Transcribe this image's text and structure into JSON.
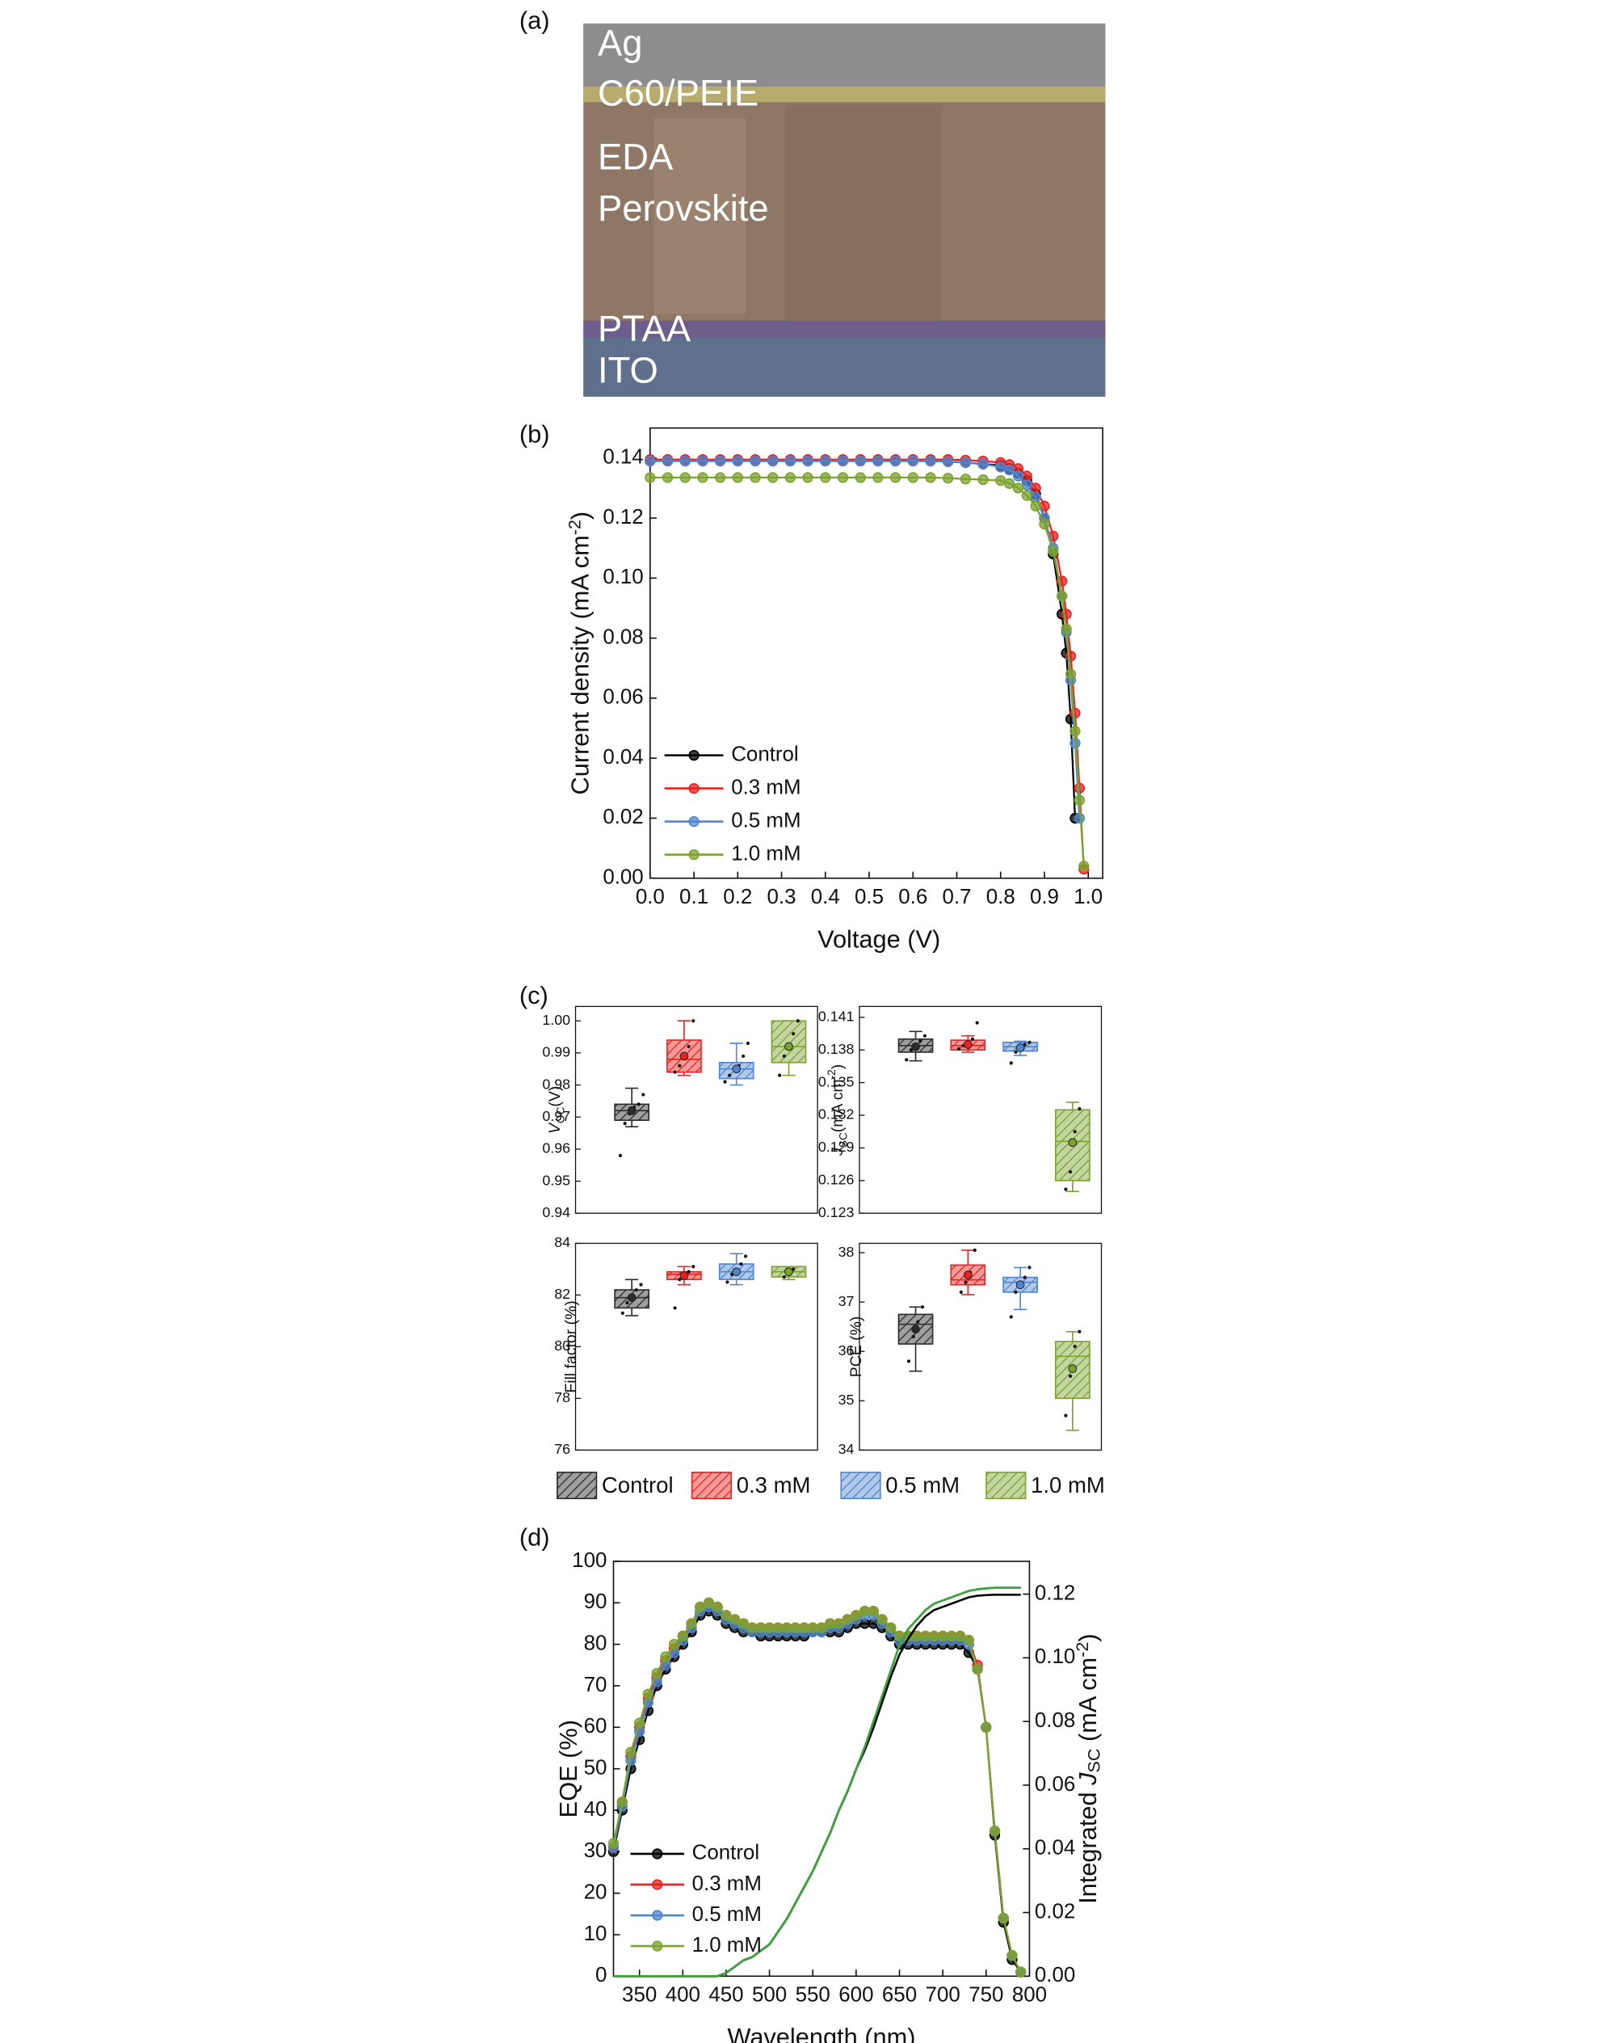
{
  "image_panel": {
    "label": "(a)",
    "layers": [
      "Ag",
      "C60/PEIE",
      "EDA",
      "Perovskite",
      "PTAA",
      "ITO"
    ]
  },
  "box_panel": {
    "label": "(c)",
    "series": [
      {
        "name": "Control",
        "color": "#2b2b2b"
      },
      {
        "name": "0.3 mM",
        "color": "#e8221f"
      },
      {
        "name": "0.5 mM",
        "color": "#4f86cf"
      },
      {
        "name": "1.0 mM",
        "color": "#7ba32e"
      }
    ]
  },
  "chart_data": [
    {
      "type": "line",
      "panel_label": "(b)",
      "xlabel": "Voltage (V)",
      "ylabel": [
        "Current density (mA cm",
        "-2",
        ")"
      ],
      "xlim": [
        0,
        1.033
      ],
      "ylim": [
        0,
        0.15
      ],
      "xticks": [
        {
          "value": 0,
          "label": "0.0"
        },
        0.1,
        0.2,
        0.3,
        0.4,
        0.5,
        0.6,
        0.7,
        0.8,
        0.9,
        {
          "value": 1,
          "label": "1.0"
        }
      ],
      "yticks": [
        {
          "value": 0,
          "label": "0.00"
        },
        0.02,
        0.04,
        0.06,
        0.08,
        {
          "value": 0.1,
          "label": "0.10"
        },
        0.12,
        0.14
      ],
      "legend": "lower left",
      "x": [
        0,
        0.04,
        0.08,
        0.12,
        0.16,
        0.2,
        0.24,
        0.28,
        0.32,
        0.36,
        0.4,
        0.44,
        0.48,
        0.52,
        0.56,
        0.6,
        0.64,
        0.68,
        0.72,
        0.76,
        0.8,
        0.82,
        0.84,
        0.86,
        0.88,
        0.9,
        0.92,
        0.94,
        0.95,
        0.96,
        0.97,
        0.98,
        0.99
      ],
      "series": [
        {
          "name": "Control",
          "color": "#000000",
          "values": [
            0.139,
            0.139,
            0.139,
            0.139,
            0.139,
            0.139,
            0.139,
            0.139,
            0.139,
            0.139,
            0.139,
            0.139,
            0.139,
            0.139,
            0.139,
            0.139,
            0.139,
            0.1388,
            0.1385,
            0.138,
            0.1375,
            0.1365,
            0.135,
            0.1325,
            0.128,
            0.12,
            0.108,
            0.088,
            0.075,
            0.053,
            0.02,
            null,
            null
          ]
        },
        {
          "name": "0.3 mM",
          "color": "#e8221f",
          "values": [
            0.1395,
            0.1395,
            0.1395,
            0.1395,
            0.1395,
            0.1395,
            0.1395,
            0.1395,
            0.1395,
            0.1395,
            0.1395,
            0.1395,
            0.1395,
            0.1395,
            0.1395,
            0.1395,
            0.1395,
            0.1395,
            0.1393,
            0.139,
            0.1385,
            0.1378,
            0.1365,
            0.134,
            0.13,
            0.124,
            0.114,
            0.099,
            0.088,
            0.074,
            0.055,
            0.03,
            0.003
          ]
        },
        {
          "name": "0.5 mM",
          "color": "#4f86cf",
          "values": [
            0.139,
            0.139,
            0.139,
            0.139,
            0.139,
            0.139,
            0.139,
            0.139,
            0.139,
            0.139,
            0.139,
            0.139,
            0.139,
            0.139,
            0.139,
            0.139,
            0.139,
            0.1388,
            0.1385,
            0.138,
            0.137,
            0.136,
            0.134,
            0.131,
            0.127,
            0.12,
            0.11,
            0.094,
            0.082,
            0.066,
            0.045,
            0.02,
            null
          ]
        },
        {
          "name": "1.0 mM",
          "color": "#7ba32e",
          "values": [
            0.1335,
            0.1335,
            0.1335,
            0.1335,
            0.1335,
            0.1335,
            0.1335,
            0.1335,
            0.1335,
            0.1335,
            0.1335,
            0.1335,
            0.1335,
            0.1335,
            0.1335,
            0.1335,
            0.1335,
            0.1333,
            0.133,
            0.1328,
            0.1325,
            0.1315,
            0.13,
            0.1275,
            0.124,
            0.118,
            0.109,
            0.094,
            0.083,
            0.068,
            0.049,
            0.026,
            0.004
          ]
        }
      ]
    },
    {
      "type": "box",
      "ylabel": [
        "V",
        "OC",
        "(V)"
      ],
      "ylim": [
        0.94,
        1.0045
      ],
      "yticks": [
        0.94,
        0.95,
        0.96,
        0.97,
        0.98,
        0.99,
        {
          "value": 1,
          "label": "1.00"
        }
      ],
      "boxes": [
        {
          "min": 0.967,
          "q1": 0.969,
          "median": 0.972,
          "q3": 0.974,
          "max": 0.979,
          "mean": 0.972,
          "points": [
            0.958,
            0.968,
            0.971,
            0.973,
            0.974,
            0.977
          ]
        },
        {
          "min": 0.983,
          "q1": 0.984,
          "median": 0.988,
          "q3": 0.994,
          "max": 1.0,
          "mean": 0.989,
          "points": [
            0.984,
            0.986,
            0.989,
            0.992,
            1.0
          ]
        },
        {
          "min": 0.98,
          "q1": 0.982,
          "median": 0.985,
          "q3": 0.987,
          "max": 0.993,
          "mean": 0.985,
          "points": [
            0.981,
            0.983,
            0.985,
            0.986,
            0.989,
            0.993
          ]
        },
        {
          "min": 0.983,
          "q1": 0.987,
          "median": 0.992,
          "q3": 1.0,
          "max": 1.0,
          "mean": 0.992,
          "points": [
            0.983,
            0.989,
            0.992,
            0.996,
            1.0
          ]
        }
      ]
    },
    {
      "type": "box",
      "ylabel": [
        "J",
        "SC",
        "(mA cm",
        "-2",
        ")"
      ],
      "ylim": [
        0.123,
        0.142
      ],
      "yticks": [
        0.123,
        0.126,
        0.129,
        0.132,
        0.135,
        0.138,
        0.141
      ],
      "boxes": [
        {
          "min": 0.137,
          "q1": 0.1378,
          "median": 0.1384,
          "q3": 0.139,
          "max": 0.1397,
          "mean": 0.1383,
          "points": [
            0.1371,
            0.138,
            0.1384,
            0.1388,
            0.1393
          ]
        },
        {
          "min": 0.1378,
          "q1": 0.138,
          "median": 0.1384,
          "q3": 0.1389,
          "max": 0.1393,
          "mean": 0.1385,
          "points": [
            0.1381,
            0.1384,
            0.1387,
            0.139,
            0.1405
          ]
        },
        {
          "min": 0.1375,
          "q1": 0.1379,
          "median": 0.1383,
          "q3": 0.1387,
          "max": 0.1388,
          "mean": 0.1382,
          "points": [
            0.1368,
            0.1378,
            0.1382,
            0.1385,
            0.1387
          ]
        },
        {
          "min": 0.125,
          "q1": 0.126,
          "median": 0.1296,
          "q3": 0.1325,
          "max": 0.1332,
          "mean": 0.1295,
          "points": [
            0.1252,
            0.1268,
            0.1305,
            0.1326
          ]
        }
      ]
    },
    {
      "type": "box",
      "ylabel": "Fill factor (%)",
      "ylim": [
        76,
        84
      ],
      "yticks": [
        76,
        78,
        80,
        82,
        84
      ],
      "boxes": [
        {
          "min": 81.2,
          "q1": 81.5,
          "median": 81.9,
          "q3": 82.2,
          "max": 82.6,
          "mean": 81.9,
          "points": [
            81.3,
            81.7,
            82.0,
            82.2,
            82.4
          ]
        },
        {
          "min": 82.4,
          "q1": 82.6,
          "median": 82.8,
          "q3": 82.9,
          "max": 83.1,
          "mean": 82.75,
          "points": [
            81.5,
            82.6,
            82.8,
            82.9,
            83.1
          ]
        },
        {
          "min": 82.4,
          "q1": 82.6,
          "median": 82.9,
          "q3": 83.2,
          "max": 83.6,
          "mean": 82.9,
          "points": [
            82.5,
            82.8,
            83.0,
            83.2,
            83.5
          ]
        },
        {
          "min": 82.6,
          "q1": 82.7,
          "median": 82.9,
          "q3": 83.1,
          "max": 83.1,
          "mean": 82.9,
          "points": [
            82.7,
            82.9,
            83.0
          ]
        }
      ]
    },
    {
      "type": "box",
      "ylabel": "PCE (%)",
      "ylim": [
        34,
        38.19
      ],
      "yticks": [
        34,
        35,
        36,
        37,
        38
      ],
      "boxes": [
        {
          "min": 35.6,
          "q1": 36.15,
          "median": 36.55,
          "q3": 36.75,
          "max": 36.9,
          "mean": 36.45,
          "points": [
            35.8,
            36.3,
            36.6,
            36.9
          ]
        },
        {
          "min": 37.15,
          "q1": 37.35,
          "median": 37.45,
          "q3": 37.75,
          "max": 38.05,
          "mean": 37.55,
          "points": [
            37.2,
            37.4,
            37.6,
            38.05
          ]
        },
        {
          "min": 36.85,
          "q1": 37.2,
          "median": 37.4,
          "q3": 37.5,
          "max": 37.7,
          "mean": 37.35,
          "points": [
            36.7,
            37.2,
            37.4,
            37.5,
            37.7
          ]
        },
        {
          "min": 34.4,
          "q1": 35.05,
          "median": 35.9,
          "q3": 36.2,
          "max": 36.4,
          "mean": 35.65,
          "points": [
            34.7,
            35.5,
            36.1,
            36.4
          ]
        }
      ]
    },
    {
      "type": "line",
      "panel_label": "(d)",
      "xlabel": "Wavelength (nm)",
      "ylabel": "EQE (%)",
      "y2label": [
        "Integrated ",
        "J",
        "SC",
        " (mA cm",
        "-2",
        ")"
      ],
      "xlim": [
        320,
        800
      ],
      "ylim": [
        0,
        100
      ],
      "y2lim": [
        0,
        0.1303
      ],
      "xticks": [
        350,
        400,
        450,
        500,
        550,
        600,
        650,
        700,
        750,
        800
      ],
      "yticks": [
        0,
        10,
        20,
        30,
        40,
        50,
        60,
        70,
        80,
        90,
        100
      ],
      "y2ticks": [
        {
          "value": 0,
          "label": "0.00"
        },
        0.02,
        0.04,
        0.06,
        0.08,
        {
          "value": 0.1,
          "label": "0.10"
        },
        0.12
      ],
      "legend": "lower left",
      "x": [
        320,
        330,
        340,
        350,
        360,
        370,
        380,
        390,
        400,
        410,
        420,
        430,
        440,
        450,
        460,
        470,
        480,
        490,
        500,
        510,
        520,
        530,
        540,
        550,
        560,
        570,
        580,
        590,
        600,
        610,
        620,
        630,
        640,
        650,
        660,
        670,
        680,
        690,
        700,
        710,
        720,
        730,
        740,
        750,
        760,
        770,
        780,
        790
      ],
      "series": [
        {
          "name": "Control",
          "color": "#000000",
          "values": [
            30,
            40,
            50,
            57,
            64,
            70,
            74,
            77,
            80,
            83,
            87,
            88,
            87,
            85,
            84,
            83,
            83,
            82,
            82,
            82,
            82,
            82,
            82,
            83,
            83,
            83,
            83,
            84,
            85,
            85,
            85,
            84,
            82,
            80,
            80,
            80,
            80,
            80,
            80,
            80,
            80,
            78,
            74,
            60,
            34,
            13,
            4,
            1
          ]
        },
        {
          "name": "0.3 mM",
          "color": "#e8221f",
          "values": [
            31,
            42,
            53,
            60,
            67,
            72,
            76,
            79,
            82,
            85,
            89,
            90,
            89,
            87,
            86,
            85,
            84,
            84,
            84,
            84,
            84,
            84,
            84,
            84,
            84,
            85,
            85,
            86,
            87,
            88,
            88,
            86,
            84,
            82,
            82,
            82,
            82,
            82,
            82,
            82,
            82,
            81,
            75,
            60,
            35,
            14,
            5,
            1
          ]
        },
        {
          "name": "0.5 mM",
          "color": "#4f86cf",
          "values": [
            31,
            41,
            52,
            59,
            66,
            71,
            75,
            78,
            81,
            84,
            88,
            89,
            88,
            86,
            85,
            84,
            83,
            83,
            83,
            83,
            83,
            83,
            83,
            83,
            83,
            84,
            84,
            85,
            86,
            87,
            87,
            85,
            83,
            81,
            81,
            81,
            81,
            81,
            81,
            81,
            81,
            80,
            74,
            60,
            35,
            14,
            5,
            1
          ]
        },
        {
          "name": "1.0 mM",
          "color": "#7ba32e",
          "values": [
            32,
            42,
            54,
            61,
            68,
            73,
            77,
            80,
            82,
            85,
            89,
            90,
            89,
            87,
            86,
            85,
            84,
            84,
            84,
            84,
            84,
            84,
            84,
            84,
            84,
            85,
            85,
            86,
            87,
            88,
            88,
            86,
            84,
            82,
            82,
            82,
            82,
            82,
            82,
            82,
            82,
            81,
            74,
            60,
            35,
            14,
            5,
            1
          ]
        },
        {
          "axis": "y2",
          "color": "#e8221f",
          "values": [
            0,
            0,
            0,
            0,
            0,
            0,
            0,
            0,
            0,
            0,
            0,
            0,
            0,
            0.001,
            0.003,
            0.005,
            0.006,
            0.008,
            0.01,
            0.014,
            0.018,
            0.023,
            0.028,
            0.033,
            0.039,
            0.045,
            0.052,
            0.058,
            0.065,
            0.072,
            0.08,
            0.088,
            0.096,
            0.104,
            0.109,
            0.112,
            0.115,
            0.117,
            0.118,
            0.119,
            0.12,
            0.121,
            0.1215,
            0.1218,
            0.122,
            0.122,
            0.122,
            0.122
          ]
        },
        {
          "axis": "y2",
          "color": "#4f86cf",
          "values": [
            0,
            0,
            0,
            0,
            0,
            0,
            0,
            0,
            0,
            0,
            0,
            0,
            0,
            0.001,
            0.003,
            0.005,
            0.006,
            0.008,
            0.01,
            0.014,
            0.018,
            0.023,
            0.028,
            0.033,
            0.039,
            0.045,
            0.052,
            0.058,
            0.065,
            0.072,
            0.08,
            0.088,
            0.096,
            0.104,
            0.109,
            0.112,
            0.115,
            0.117,
            0.118,
            0.119,
            0.12,
            0.121,
            0.1215,
            0.1218,
            0.122,
            0.122,
            0.122,
            0.122
          ]
        },
        {
          "axis": "y2",
          "color": "#000000",
          "values": [
            0,
            0,
            0,
            0,
            0,
            0,
            0,
            0,
            0,
            0,
            0,
            0,
            0,
            0.001,
            0.003,
            0.005,
            0.006,
            0.008,
            0.01,
            0.014,
            0.018,
            0.023,
            0.028,
            0.033,
            0.039,
            0.045,
            0.052,
            0.058,
            0.065,
            0.071,
            0.078,
            0.086,
            0.094,
            0.101,
            0.106,
            0.11,
            0.113,
            0.115,
            0.116,
            0.117,
            0.118,
            0.119,
            0.1195,
            0.1197,
            0.1198,
            0.1198,
            0.1198,
            0.1198
          ]
        },
        {
          "axis": "y2",
          "color": "#3aa63a",
          "values": [
            0,
            0,
            0,
            0,
            0,
            0,
            0,
            0,
            0,
            0,
            0,
            0,
            0,
            0.001,
            0.003,
            0.005,
            0.006,
            0.008,
            0.01,
            0.014,
            0.018,
            0.023,
            0.028,
            0.033,
            0.039,
            0.045,
            0.052,
            0.058,
            0.065,
            0.072,
            0.08,
            0.088,
            0.096,
            0.104,
            0.109,
            0.112,
            0.115,
            0.117,
            0.118,
            0.119,
            0.12,
            0.121,
            0.1215,
            0.1218,
            0.122,
            0.122,
            0.122,
            0.122
          ]
        }
      ]
    }
  ]
}
